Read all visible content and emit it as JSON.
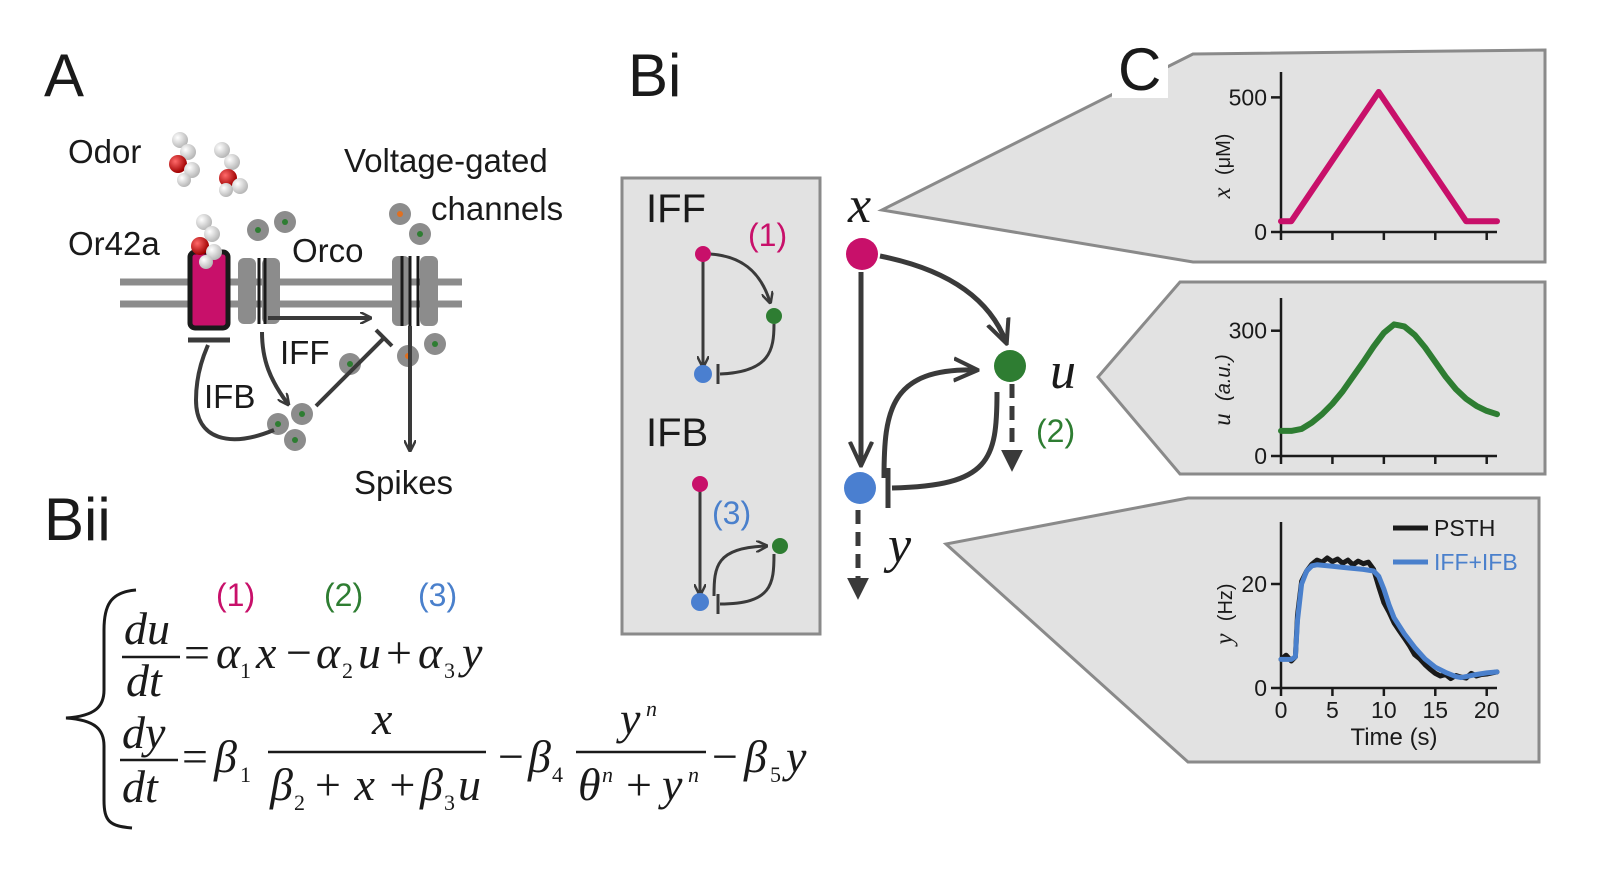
{
  "panels": {
    "a": "A",
    "bi": "Bi",
    "bii": "Bii",
    "c": "C"
  },
  "panel_a": {
    "odor": "Odor",
    "receptor": "Or42a",
    "coreceptor": "Orco",
    "channels_line1": "Voltage-gated",
    "channels_line2": "channels",
    "iff": "IFF",
    "ifb": "IFB",
    "spikes": "Spikes"
  },
  "panel_bi": {
    "iff_title": "IFF",
    "ifb_title": "IFB",
    "tag1": "(1)",
    "tag2": "(2)",
    "tag3": "(3)",
    "node_x": "x",
    "node_u": "u",
    "node_y": "y"
  },
  "panel_bii": {
    "term_tags": [
      "(1)",
      "(2)",
      "(3)"
    ],
    "eq1": {
      "lhs_num": "du",
      "lhs_den": "dt",
      "equals": "=",
      "a1": "α",
      "s1": "1",
      "t1": "x",
      "m1": "−",
      "a2": "α",
      "s2": "2",
      "t2": "u",
      "p1": "+",
      "a3": "α",
      "s3": "3",
      "t3": "y"
    },
    "eq2": {
      "lhs_num": "dy",
      "lhs_den": "dt",
      "equals": "=",
      "b1": "β",
      "s1": "1",
      "f1_num": "x",
      "f1_den_b2": "β",
      "f1_den_s2": "2",
      "f1_den_rest": "+ x +",
      "f1_den_b3": "β",
      "f1_den_s3": "3",
      "f1_den_u": "u",
      "m1": "−",
      "b4": "β",
      "s4": "4",
      "f2_num": "y",
      "f2_num_exp": "n",
      "f2_den_theta": "θ",
      "f2_den_exp1": "n",
      "f2_den_plus": "+",
      "f2_den_y": "y",
      "f2_den_exp2": "n",
      "m2": "−",
      "b5": "β",
      "s5": "5",
      "tail": "y"
    }
  },
  "colors": {
    "magenta": "#c8106a",
    "green": "#2e7d32",
    "blue": "#4a7fd0",
    "dark": "#3a3a3a",
    "panel_fill": "#e2e2e2",
    "panel_stroke": "#8a8a8a",
    "psth": "#1a1a1a",
    "model": "#4a80cc"
  },
  "chart_data": [
    {
      "type": "line",
      "ylabel": "x",
      "ylabel_unit": "(μM)",
      "xlim": [
        0,
        21
      ],
      "ylim": [
        0,
        520
      ],
      "yticks": [
        0,
        500
      ],
      "xtick_positions": [
        0,
        5,
        10,
        15,
        20
      ],
      "series": [
        {
          "x": [
            0,
            1,
            9.5,
            18,
            19,
            21
          ],
          "y": [
            40,
            40,
            520,
            40,
            40,
            40
          ]
        }
      ]
    },
    {
      "type": "line",
      "ylabel": "u",
      "ylabel_unit": "(a.u.)",
      "xlim": [
        0,
        21
      ],
      "ylim": [
        0,
        340
      ],
      "yticks": [
        0,
        300
      ],
      "xtick_positions": [
        0,
        5,
        10,
        15,
        20
      ],
      "series": [
        {
          "x": [
            0,
            1,
            2,
            3,
            4,
            5,
            6,
            7,
            8,
            9,
            10,
            11,
            12,
            13,
            14,
            15,
            16,
            17,
            18,
            19,
            20,
            21
          ],
          "y": [
            60,
            60,
            65,
            80,
            100,
            125,
            155,
            190,
            225,
            262,
            295,
            315,
            310,
            290,
            260,
            225,
            190,
            160,
            137,
            120,
            108,
            100
          ]
        }
      ]
    },
    {
      "type": "line",
      "ylabel": "y",
      "ylabel_unit": "(Hz)",
      "xlabel": "Time (s)",
      "xlim": [
        0,
        21
      ],
      "ylim": [
        0,
        25
      ],
      "yticks": [
        0,
        20
      ],
      "xticks": [
        "0",
        "5",
        "10",
        "15",
        "20"
      ],
      "legend": "top-right",
      "series": [
        {
          "name": "PSTH",
          "x": [
            0,
            0.5,
            1,
            1.4,
            1.6,
            2,
            2.5,
            3,
            3.5,
            4,
            4.5,
            5,
            5.5,
            6,
            6.5,
            7,
            7.5,
            8,
            8.5,
            9,
            9.5,
            10,
            10.5,
            11,
            11.5,
            12,
            12.5,
            13,
            13.5,
            14,
            14.5,
            15,
            15.5,
            16,
            16.5,
            17,
            17.5,
            18,
            18.5,
            19,
            19.5,
            20,
            20.5,
            21
          ],
          "y": [
            5.5,
            6.3,
            5.2,
            6,
            14,
            20.5,
            22.5,
            23.8,
            24.6,
            24.2,
            25,
            24.3,
            24.8,
            24,
            24.6,
            23.7,
            24.4,
            23.9,
            24.2,
            22.8,
            19.5,
            16.4,
            14.6,
            12.5,
            11,
            9.6,
            8.1,
            6.4,
            5.6,
            4.5,
            3.6,
            2.8,
            2.3,
            2.6,
            1.8,
            2.4,
            2.1,
            1.9,
            2.8,
            2.3,
            2.6,
            2.7,
            2.9,
            3.1
          ]
        },
        {
          "name": "IFF+IFB",
          "x": [
            0,
            1,
            1.4,
            1.6,
            2,
            2.5,
            3,
            3.5,
            4,
            5,
            6,
            7,
            8,
            9,
            9.5,
            10,
            10.5,
            11,
            12,
            13,
            14,
            15,
            16,
            17,
            17.5,
            18,
            19,
            20,
            21
          ],
          "y": [
            5.5,
            5.5,
            6,
            13,
            20,
            22.5,
            23.5,
            23.7,
            23.6,
            23.4,
            23.2,
            23,
            22.8,
            22.5,
            21.5,
            19,
            16,
            13.5,
            10.4,
            7.8,
            5.6,
            4,
            3,
            2.2,
            2,
            2.2,
            2.6,
            2.9,
            3.1
          ]
        }
      ]
    }
  ]
}
